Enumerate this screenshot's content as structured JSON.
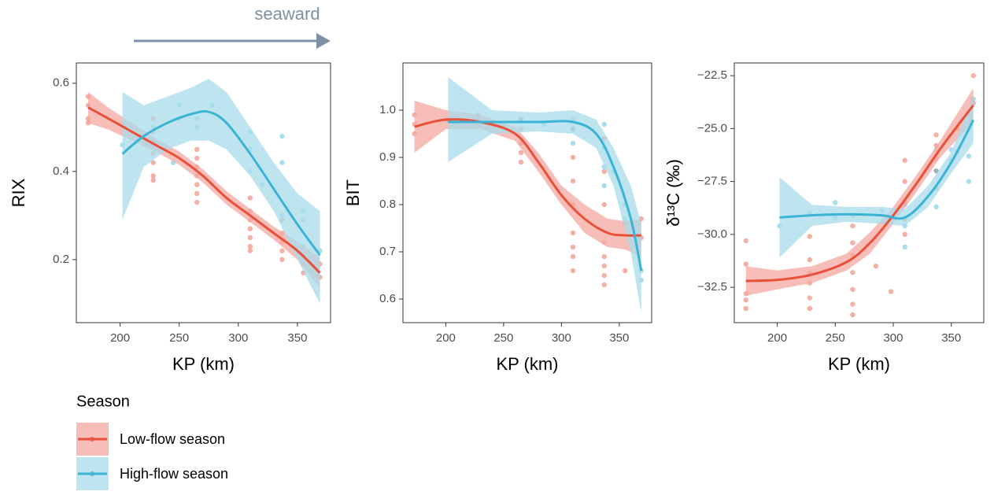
{
  "annotation": "seaward",
  "legend": {
    "title": "Season",
    "entries": [
      {
        "name": "Low-flow season",
        "color": "#e8503a",
        "band_color": "#f4a7a0"
      },
      {
        "name": "High-flow season",
        "color": "#3bb3d4",
        "band_color": "#a8dcea"
      }
    ]
  },
  "chart_data": [
    {
      "type": "scatter",
      "xlabel": "KP (km)",
      "ylabel": "RIX",
      "xlim": [
        163,
        378
      ],
      "xticks": [
        200,
        250,
        300,
        350
      ],
      "ylim": [
        0.057,
        0.646
      ],
      "yticks": [
        0.2,
        0.4,
        0.6
      ],
      "series": [
        {
          "x": [
            173,
            173,
            173,
            173,
            228,
            228,
            228,
            228,
            228,
            228,
            228,
            265,
            265,
            265,
            265,
            265,
            265,
            265,
            310,
            310,
            310,
            310,
            310,
            310,
            310,
            337,
            337,
            337,
            337,
            337,
            355,
            355,
            355,
            369,
            369
          ],
          "values": [
            0.57,
            0.55,
            0.52,
            0.51,
            0.52,
            0.49,
            0.47,
            0.44,
            0.42,
            0.39,
            0.38,
            0.45,
            0.43,
            0.41,
            0.39,
            0.37,
            0.35,
            0.33,
            0.34,
            0.31,
            0.29,
            0.27,
            0.25,
            0.23,
            0.22,
            0.29,
            0.26,
            0.24,
            0.22,
            0.2,
            0.21,
            0.19,
            0.17,
            0.19,
            0.16
          ],
          "fit": {
            "x": [
              173,
              190,
              210,
              230,
              250,
              270,
              290,
              310,
              330,
              350,
              369
            ],
            "values": [
              0.545,
              0.52,
              0.49,
              0.46,
              0.43,
              0.39,
              0.34,
              0.3,
              0.26,
              0.22,
              0.17
            ],
            "lower": [
              0.51,
              0.495,
              0.47,
              0.445,
              0.415,
              0.375,
              0.325,
              0.285,
              0.245,
              0.2,
              0.135
            ],
            "upper": [
              0.58,
              0.545,
              0.51,
              0.475,
              0.445,
              0.405,
              0.355,
              0.315,
              0.275,
              0.24,
              0.205
            ]
          }
        },
        {
          "x": [
            202,
            228,
            228,
            245,
            250,
            250,
            265,
            265,
            278,
            310,
            310,
            310,
            320,
            337,
            337,
            337,
            355,
            355,
            355,
            369
          ],
          "values": [
            0.46,
            0.5,
            0.46,
            0.42,
            0.55,
            0.52,
            0.52,
            0.5,
            0.55,
            0.49,
            0.45,
            0.4,
            0.37,
            0.48,
            0.42,
            0.3,
            0.31,
            0.29,
            0.23,
            0.22
          ],
          "fit": {
            "x": [
              202,
              220,
              240,
              260,
              275,
              290,
              310,
              330,
              350,
              369
            ],
            "values": [
              0.44,
              0.48,
              0.51,
              0.53,
              0.535,
              0.51,
              0.44,
              0.36,
              0.28,
              0.21
            ],
            "lower": [
              0.29,
              0.41,
              0.45,
              0.47,
              0.47,
              0.45,
              0.39,
              0.31,
              0.2,
              0.1
            ],
            "upper": [
              0.58,
              0.55,
              0.57,
              0.59,
              0.61,
              0.58,
              0.5,
              0.42,
              0.35,
              0.31
            ]
          }
        }
      ]
    },
    {
      "type": "scatter",
      "xlabel": "KP (km)",
      "ylabel": "BIT",
      "xlim": [
        163,
        378
      ],
      "xticks": [
        200,
        250,
        300,
        350
      ],
      "ylim": [
        0.55,
        1.1
      ],
      "yticks": [
        0.6,
        0.7,
        0.8,
        0.9,
        {
          "value": 1,
          "label": "1.0"
        }
      ],
      "series": [
        {
          "x": [
            173,
            173,
            173,
            202,
            228,
            228,
            228,
            265,
            265,
            265,
            265,
            265,
            310,
            310,
            310,
            310,
            310,
            310,
            310,
            310,
            337,
            337,
            337,
            337,
            337,
            337,
            337,
            337,
            355,
            355,
            369,
            369
          ],
          "values": [
            0.99,
            0.97,
            0.95,
            0.98,
            0.99,
            0.98,
            0.97,
            0.98,
            0.96,
            0.93,
            0.91,
            0.89,
            0.96,
            0.9,
            0.85,
            0.8,
            0.74,
            0.71,
            0.69,
            0.66,
            0.94,
            0.87,
            0.8,
            0.72,
            0.69,
            0.67,
            0.65,
            0.63,
            0.76,
            0.66,
            0.77,
            0.73
          ],
          "fit": {
            "x": [
              173,
              200,
              230,
              260,
              280,
              300,
              320,
              340,
              355,
              369
            ],
            "values": [
              0.965,
              0.98,
              0.975,
              0.95,
              0.89,
              0.82,
              0.77,
              0.74,
              0.735,
              0.735
            ],
            "lower": [
              0.91,
              0.96,
              0.96,
              0.935,
              0.87,
              0.8,
              0.74,
              0.71,
              0.705,
              0.69
            ],
            "upper": [
              1.02,
              1.0,
              0.99,
              0.965,
              0.91,
              0.84,
              0.8,
              0.77,
              0.765,
              0.77
            ]
          }
        },
        {
          "x": [
            202,
            228,
            250,
            265,
            285,
            310,
            310,
            310,
            337,
            337,
            337,
            337,
            345,
            355,
            355,
            369,
            369
          ],
          "values": [
            0.98,
            0.98,
            0.97,
            0.98,
            0.97,
            0.98,
            0.96,
            0.93,
            0.97,
            0.92,
            0.88,
            0.84,
            0.87,
            0.8,
            0.77,
            0.64,
            0.66
          ],
          "fit": {
            "x": [
              202,
              240,
              280,
              310,
              330,
              345,
              360,
              369
            ],
            "values": [
              0.975,
              0.975,
              0.975,
              0.975,
              0.95,
              0.88,
              0.77,
              0.66
            ],
            "lower": [
              0.89,
              0.95,
              0.955,
              0.95,
              0.92,
              0.84,
              0.7,
              0.57
            ],
            "upper": [
              1.07,
              1.0,
              0.995,
              1.0,
              0.98,
              0.92,
              0.84,
              0.76
            ]
          }
        }
      ]
    },
    {
      "type": "scatter",
      "xlabel": "KP (km)",
      "ylabel": "δ¹³C (‰)",
      "xlim": [
        163,
        378
      ],
      "xticks": [
        200,
        250,
        300,
        350
      ],
      "ylim": [
        -34.17,
        -21.9
      ],
      "yticks": [
        {
          "value": -32.5,
          "label": "−32.5"
        },
        {
          "value": -30,
          "label": "−30.0"
        },
        {
          "value": -27.5,
          "label": "−27.5"
        },
        {
          "value": -25,
          "label": "−25.0"
        },
        {
          "value": -22.5,
          "label": "−22.5"
        }
      ],
      "series": [
        {
          "x": [
            173,
            173,
            173,
            173,
            173,
            228,
            228,
            228,
            228,
            228,
            228,
            265,
            265,
            265,
            265,
            265,
            265,
            265,
            285,
            298,
            310,
            310,
            310,
            310,
            310,
            337,
            337,
            337,
            337,
            337,
            355,
            355,
            369,
            369
          ],
          "values": [
            -30.3,
            -31.4,
            -32.8,
            -33.1,
            -33.5,
            -30.1,
            -31.2,
            -31.8,
            -32.3,
            -33.0,
            -33.5,
            -29.6,
            -30.4,
            -31.0,
            -31.8,
            -32.6,
            -33.3,
            -33.8,
            -31.5,
            -32.7,
            -26.5,
            -27.5,
            -28.5,
            -29.3,
            -30.0,
            -25.3,
            -25.8,
            -26.4,
            -27.0,
            -27.8,
            -25.0,
            -26.1,
            -22.5,
            -23.8
          ],
          "fit": {
            "x": [
              173,
              200,
              230,
              260,
              280,
              300,
              320,
              340,
              355,
              369
            ],
            "values": [
              -32.2,
              -32.15,
              -31.9,
              -31.3,
              -30.4,
              -29.1,
              -27.6,
              -26.0,
              -24.9,
              -23.9
            ],
            "lower": [
              -32.9,
              -32.6,
              -32.3,
              -31.7,
              -30.9,
              -29.5,
              -28.0,
              -26.4,
              -25.5,
              -24.7
            ],
            "upper": [
              -31.5,
              -31.7,
              -31.5,
              -30.9,
              -29.9,
              -28.7,
              -27.2,
              -25.6,
              -24.3,
              -23.1
            ]
          }
        },
        {
          "x": [
            202,
            228,
            250,
            250,
            265,
            290,
            310,
            310,
            310,
            337,
            337,
            337,
            350,
            350,
            365,
            365,
            369
          ],
          "values": [
            -29.6,
            -29.0,
            -28.5,
            -29.2,
            -29.1,
            -28.9,
            -28.6,
            -29.6,
            -30.6,
            -28.7,
            -27.0,
            -26.0,
            -26.5,
            -26.0,
            -27.5,
            -26.3,
            -23.6
          ],
          "fit": {
            "x": [
              202,
              230,
              260,
              290,
              310,
              330,
              350,
              369
            ],
            "values": [
              -29.2,
              -29.1,
              -29.05,
              -29.1,
              -29.2,
              -28.2,
              -26.6,
              -24.6
            ],
            "lower": [
              -31.1,
              -29.6,
              -29.4,
              -29.5,
              -29.6,
              -28.7,
              -27.1,
              -25.7
            ],
            "upper": [
              -27.3,
              -28.6,
              -28.7,
              -28.7,
              -28.8,
              -27.7,
              -26.1,
              -23.5
            ]
          }
        }
      ]
    }
  ]
}
